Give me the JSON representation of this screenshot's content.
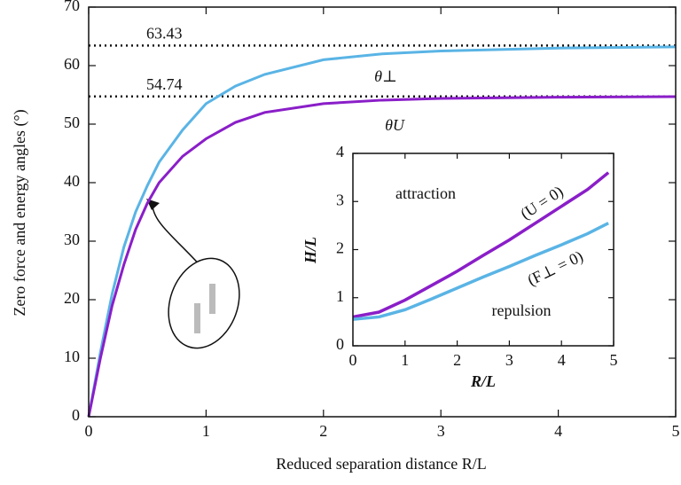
{
  "chart_data": [
    {
      "type": "line",
      "xlabel": "Reduced separation distance R/L",
      "ylabel": "Zero force and energy angles (°)",
      "x": [
        0,
        0.1,
        0.2,
        0.3,
        0.4,
        0.5,
        0.6,
        0.8,
        1,
        1.25,
        1.5,
        2,
        2.5,
        3,
        4,
        5
      ],
      "series": [
        {
          "name": "θ⊥",
          "color": "#5ab4e5",
          "values": [
            0,
            11,
            21,
            29,
            35,
            39.5,
            43.5,
            49,
            53.5,
            56.5,
            58.5,
            61,
            62,
            62.5,
            63,
            63.2
          ]
        },
        {
          "name": "θU",
          "color": "#8a1ec8",
          "values": [
            0,
            10,
            19,
            26,
            32,
            36.5,
            40,
            44.5,
            47.5,
            50.3,
            52,
            53.5,
            54.1,
            54.4,
            54.6,
            54.7
          ]
        }
      ],
      "hlines": [
        63.43,
        54.74
      ],
      "xlim": [
        0,
        5
      ],
      "ylim": [
        0,
        70
      ],
      "xticks": [
        0,
        1,
        2,
        3,
        4,
        5
      ],
      "yticks": [
        0,
        10,
        20,
        30,
        40,
        50,
        60,
        70
      ]
    },
    {
      "type": "line",
      "xlabel": "R/L",
      "ylabel": "H/L",
      "x": [
        0,
        0.5,
        1,
        1.5,
        2,
        2.5,
        3,
        3.5,
        4,
        4.5,
        4.9
      ],
      "series": [
        {
          "name": "(U = 0)",
          "color": "#8a1ec8",
          "values": [
            0.6,
            0.7,
            0.95,
            1.25,
            1.55,
            1.88,
            2.2,
            2.55,
            2.9,
            3.25,
            3.6
          ]
        },
        {
          "name": "(F⊥ = 0)",
          "color": "#5ab4e5",
          "values": [
            0.55,
            0.6,
            0.75,
            0.97,
            1.2,
            1.43,
            1.65,
            1.88,
            2.1,
            2.33,
            2.55
          ]
        }
      ],
      "annotations": [
        "attraction",
        "repulsion"
      ],
      "xlim": [
        0,
        5
      ],
      "ylim": [
        0,
        4
      ],
      "xticks": [
        0,
        1,
        2,
        3,
        4,
        5
      ],
      "yticks": [
        0,
        1,
        2,
        3,
        4
      ]
    }
  ]
}
